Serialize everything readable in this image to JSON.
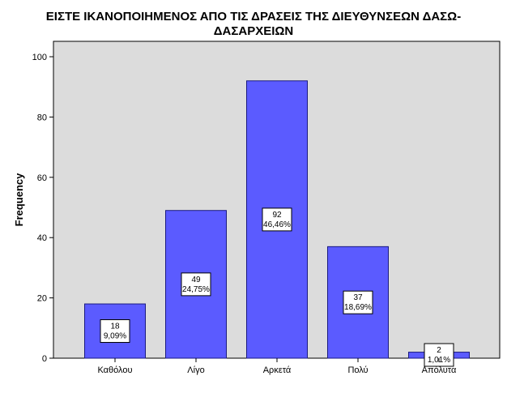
{
  "chart_data": {
    "type": "bar",
    "title_lines": [
      "ΕΙΣΤΕ ΙΚΑΝΟΠΟΙΗΜΕΝΟΣ ΑΠΟ ΤΙΣ ΔΡΑΣΕΙΣ ΤΗΣ ΔΙΕΥΘΥΝΣΕΩΝ ΔΑΣΩ-",
      "ΔΑΣΑΡΧΕΙΩΝ"
    ],
    "xlabel": "",
    "ylabel": "Frequency",
    "ylim": [
      0,
      100
    ],
    "yticks": [
      0,
      20,
      40,
      60,
      80,
      100
    ],
    "categories": [
      "Καθόλου",
      "Λίγο",
      "Αρκετά",
      "Πολύ",
      "Απόλυτα"
    ],
    "values": [
      18,
      49,
      92,
      37,
      2
    ],
    "value_labels": [
      "18",
      "49",
      "92",
      "37",
      "2"
    ],
    "percent_labels": [
      "9,09%",
      "24,75%",
      "46,46%",
      "18,69%",
      "1,01%"
    ],
    "grid": false,
    "colors": {
      "bar_fill": "#5B5BFF",
      "bar_stroke": "#1A1A80",
      "plot_background": "#DCDCDC",
      "label_box": "#FFFFFF"
    }
  }
}
